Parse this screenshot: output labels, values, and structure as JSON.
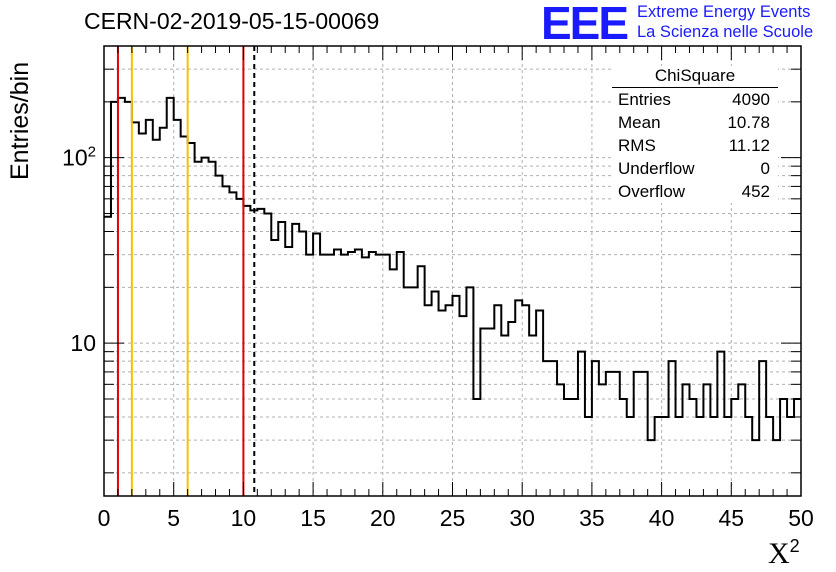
{
  "header": {
    "title": "CERN-02-2019-05-15-00069",
    "logo_mark": "EEE",
    "logo_line1": "Extreme Energy Events",
    "logo_line2": "La Scienza nelle Scuole",
    "logo_color": "#1a1aff"
  },
  "stats_box": {
    "name": "ChiSquare",
    "rows": [
      {
        "label": "Entries",
        "value": "4090"
      },
      {
        "label": "Mean",
        "value": "10.78"
      },
      {
        "label": "RMS",
        "value": "11.12"
      },
      {
        "label": "Underflow",
        "value": "0"
      },
      {
        "label": "Overflow",
        "value": "452"
      }
    ]
  },
  "chart_data": {
    "type": "histogram",
    "title": "CERN-02-2019-05-15-00069",
    "xlabel": "X",
    "xlabel_superscript": "2",
    "ylabel": "Entries/bin",
    "xlim": [
      0,
      50
    ],
    "ylim": [
      1.5,
      400
    ],
    "y_scale": "log",
    "grid": true,
    "bin_width": 0.5,
    "x_ticks": [
      0,
      5,
      10,
      15,
      20,
      25,
      30,
      35,
      40,
      45,
      50
    ],
    "y_tick_labels": [
      {
        "value": 10,
        "label": "10"
      },
      {
        "value": 100,
        "label": "10",
        "exponent": "2"
      }
    ],
    "values": [
      48,
      200,
      210,
      200,
      155,
      135,
      160,
      125,
      145,
      210,
      160,
      130,
      120,
      95,
      100,
      95,
      80,
      70,
      65,
      60,
      55,
      52,
      53,
      50,
      36,
      45,
      33,
      44,
      40,
      30,
      39,
      30,
      30,
      32,
      30,
      31,
      32,
      29,
      31,
      30,
      30,
      25,
      31,
      20,
      20,
      26,
      16,
      19,
      15,
      16,
      18,
      14,
      20,
      5,
      12,
      12,
      16,
      11,
      13,
      17,
      16,
      11,
      15,
      8,
      8,
      6,
      5,
      5,
      9,
      4,
      8,
      6,
      7,
      7,
      5,
      4,
      7,
      7,
      3,
      4,
      4,
      8,
      4,
      6,
      5,
      4,
      6,
      4,
      9,
      4,
      5,
      6,
      4,
      3,
      8,
      4,
      3,
      5,
      4,
      5
    ],
    "vertical_lines": [
      {
        "x": 1,
        "color": "#e00000",
        "style": "solid"
      },
      {
        "x": 2,
        "color": "#f2c200",
        "style": "solid"
      },
      {
        "x": 6,
        "color": "#f2c200",
        "style": "solid"
      },
      {
        "x": 10,
        "color": "#e00000",
        "style": "solid"
      },
      {
        "x": 10.78,
        "color": "#000000",
        "style": "dashed"
      }
    ]
  }
}
